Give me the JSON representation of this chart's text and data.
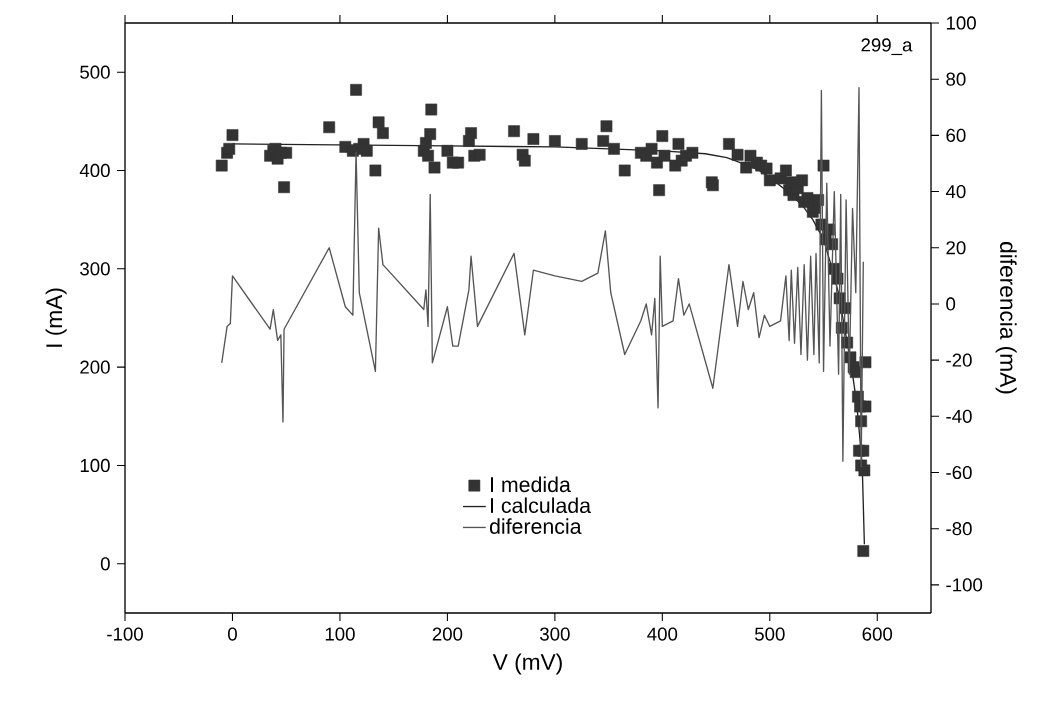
{
  "chart_data": {
    "type": "line",
    "xlabel": "V (mV)",
    "ylabel": "I (mA)",
    "y2label": "diferencia (mA)",
    "annotations": [
      "299_a"
    ],
    "xlim": [
      -100,
      650
    ],
    "xticks": [
      -100,
      0,
      100,
      200,
      300,
      400,
      500,
      600
    ],
    "ylim": [
      -50,
      550
    ],
    "yticks": [
      0,
      100,
      200,
      300,
      400,
      500
    ],
    "y2lim": [
      -110,
      100
    ],
    "y2ticks": [
      -100,
      -80,
      -60,
      -40,
      -20,
      0,
      20,
      40,
      60,
      80,
      100
    ],
    "grid": false,
    "legend": "bottom",
    "series": [
      {
        "name": "I medida",
        "type": "scatter",
        "marker": "square",
        "color": "#333333",
        "x": [
          -10,
          -5,
          -3,
          0,
          35,
          38,
          40,
          42,
          45,
          48,
          50,
          90,
          105,
          112,
          115,
          118,
          122,
          125,
          133,
          136,
          140,
          178,
          180,
          182,
          184,
          185,
          188,
          200,
          205,
          210,
          220,
          222,
          225,
          230,
          262,
          270,
          272,
          280,
          300,
          325,
          345,
          348,
          355,
          365,
          380,
          385,
          390,
          395,
          397,
          400,
          402,
          412,
          415,
          418,
          422,
          428,
          446,
          447,
          462,
          470,
          478,
          482,
          488,
          492,
          497,
          500,
          510,
          515,
          518,
          520,
          522,
          526,
          530,
          532,
          535,
          540,
          542,
          545,
          548,
          550,
          552,
          555,
          558,
          560,
          563,
          565,
          567,
          570,
          572,
          575,
          578,
          580,
          582,
          584,
          585,
          587,
          583,
          585,
          588,
          589,
          589,
          587
        ],
        "values": [
          405,
          418,
          422,
          436,
          415,
          420,
          422,
          412,
          418,
          383,
          418,
          444,
          424,
          420,
          482,
          422,
          427,
          420,
          400,
          449,
          438,
          420,
          428,
          415,
          437,
          462,
          403,
          420,
          408,
          408,
          430,
          438,
          415,
          416,
          440,
          416,
          410,
          432,
          430,
          427,
          430,
          445,
          422,
          400,
          418,
          415,
          422,
          408,
          380,
          435,
          415,
          405,
          427,
          410,
          415,
          418,
          388,
          385,
          427,
          416,
          403,
          415,
          408,
          405,
          402,
          390,
          392,
          400,
          380,
          388,
          375,
          382,
          390,
          368,
          372,
          358,
          362,
          370,
          345,
          405,
          330,
          340,
          325,
          300,
          290,
          270,
          240,
          260,
          225,
          210,
          200,
          195,
          170,
          160,
          145,
          115,
          115,
          100,
          95,
          205,
          160,
          13
        ]
      },
      {
        "name": "I calculada",
        "color": "#222222",
        "x": [
          0,
          100,
          200,
          300,
          400,
          440,
          460,
          480,
          490,
          500,
          515,
          530,
          540,
          550,
          558,
          564,
          568,
          572,
          576,
          580,
          582,
          584,
          586,
          588
        ],
        "values": [
          427,
          426,
          425,
          424,
          420,
          417,
          413,
          405,
          400,
          393,
          380,
          365,
          350,
          330,
          300,
          275,
          250,
          225,
          200,
          170,
          150,
          125,
          100,
          20
        ]
      },
      {
        "name": "diferencia",
        "axis": "y2",
        "color": "#555555",
        "x": [
          -10,
          -5,
          -2,
          0,
          35,
          38,
          42,
          45,
          47,
          48,
          90,
          105,
          112,
          115,
          118,
          133,
          136,
          140,
          178,
          180,
          182,
          184,
          186,
          200,
          205,
          210,
          220,
          222,
          228,
          262,
          272,
          280,
          300,
          325,
          340,
          347,
          352,
          365,
          380,
          385,
          390,
          393,
          396,
          398,
          400,
          410,
          415,
          420,
          425,
          447,
          462,
          470,
          475,
          480,
          485,
          490,
          495,
          500,
          510,
          515,
          518,
          520,
          523,
          526,
          529,
          532,
          535,
          538,
          541,
          543,
          546,
          548,
          550,
          553,
          556,
          560,
          564,
          566,
          568,
          571,
          574,
          577,
          580,
          583,
          585,
          587
        ],
        "values": [
          -21,
          -8,
          -7,
          10,
          -9,
          -2,
          -13,
          -11,
          -42,
          -9,
          20,
          -1,
          -4,
          54,
          4,
          -24,
          27,
          14,
          -2,
          5,
          -8,
          39,
          -21,
          -1,
          -15,
          -15,
          5,
          17,
          -8,
          18,
          -11,
          12,
          10,
          8,
          11,
          26,
          4,
          -18,
          -6,
          0,
          -11,
          2,
          -37,
          17,
          -8,
          -6,
          9,
          -4,
          0,
          -30,
          14,
          -8,
          8,
          -2,
          4,
          -12,
          -4,
          -8,
          -6,
          10,
          -13,
          12,
          -14,
          13,
          -18,
          14,
          -20,
          17,
          -18,
          18,
          -21,
          76,
          -24,
          43,
          -15,
          40,
          -25,
          39,
          -56,
          37,
          -25,
          34,
          4,
          77,
          -58,
          15
        ]
      }
    ]
  }
}
